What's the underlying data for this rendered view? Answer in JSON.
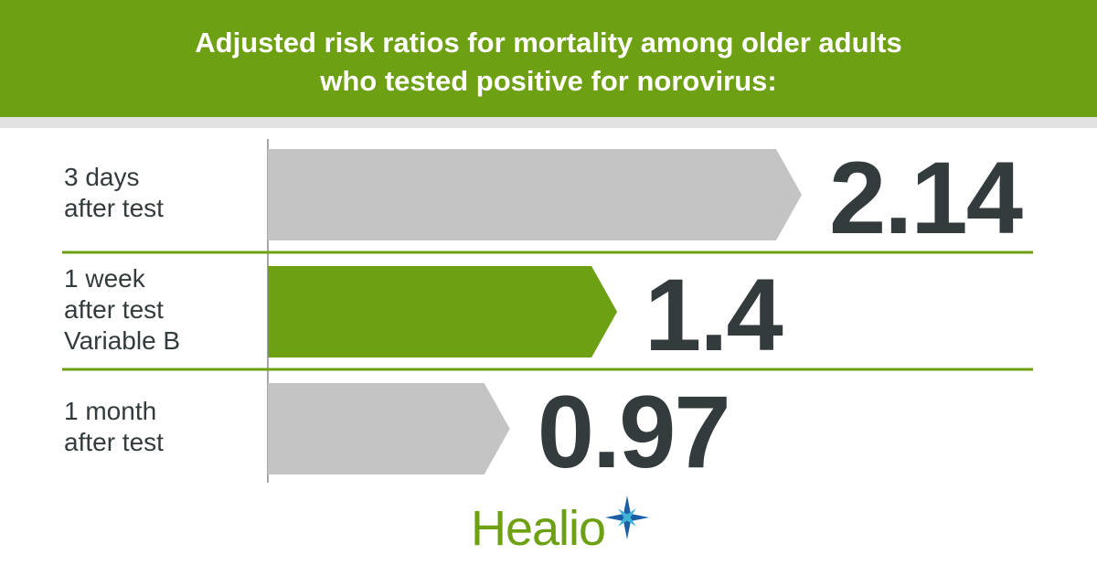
{
  "chart_data": {
    "type": "bar",
    "orientation": "horizontal",
    "title": "Adjusted risk ratios for mortality among older adults\nwho tested positive for norovirus:",
    "categories": [
      "3 days\nafter test",
      "1 week\nafter test\nVariable B",
      "1 month\nafter test"
    ],
    "values": [
      2.14,
      1.4,
      0.97
    ],
    "colors": [
      "#c4c4c4",
      "#6ea013",
      "#c4c4c4"
    ]
  },
  "footer": {
    "logo": "Healio"
  }
}
